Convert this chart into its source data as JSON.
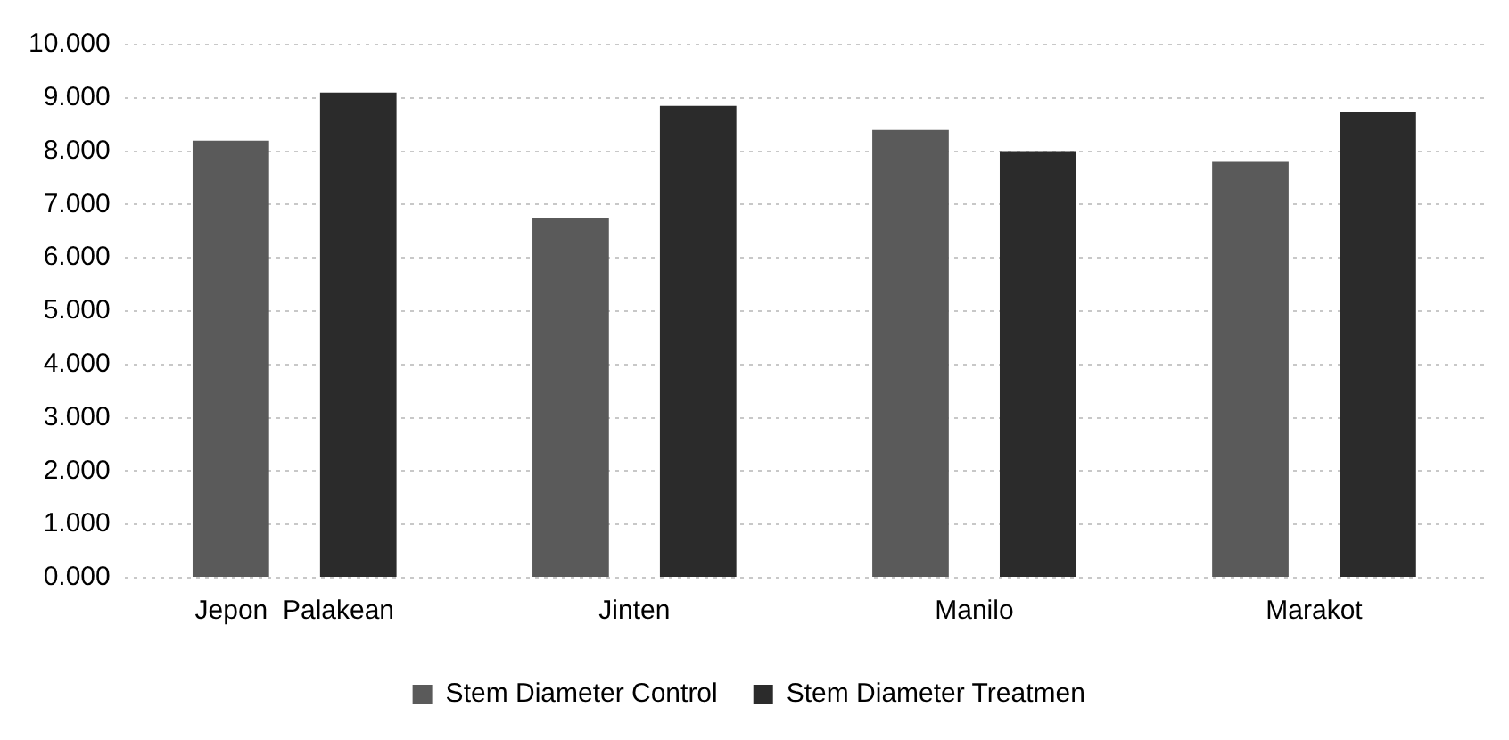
{
  "chart_data": {
    "type": "bar",
    "categories": [
      "Jepon  Palakean",
      "Jinten",
      "Manilo",
      "Marakot"
    ],
    "series": [
      {
        "name": "Stem Diameter Control",
        "color": "#5a5a5a",
        "values": [
          8.2,
          6.75,
          8.4,
          7.8
        ]
      },
      {
        "name": "Stem Diameter Treatmen",
        "color": "#2b2b2b",
        "values": [
          9.1,
          8.85,
          8.0,
          8.73
        ]
      }
    ],
    "ylim": [
      0,
      10
    ],
    "yticks": [
      {
        "value": 0,
        "label": "0.000"
      },
      {
        "value": 1,
        "label": "1.000"
      },
      {
        "value": 2,
        "label": "2.000"
      },
      {
        "value": 3,
        "label": "3.000"
      },
      {
        "value": 4,
        "label": "4.000"
      },
      {
        "value": 5,
        "label": "5.000"
      },
      {
        "value": 6,
        "label": "6.000"
      },
      {
        "value": 7,
        "label": "7.000"
      },
      {
        "value": 8,
        "label": "8.000"
      },
      {
        "value": 9,
        "label": "9.000"
      },
      {
        "value": 10,
        "label": "10.000"
      }
    ],
    "grid": "y",
    "legend": "bottom"
  }
}
